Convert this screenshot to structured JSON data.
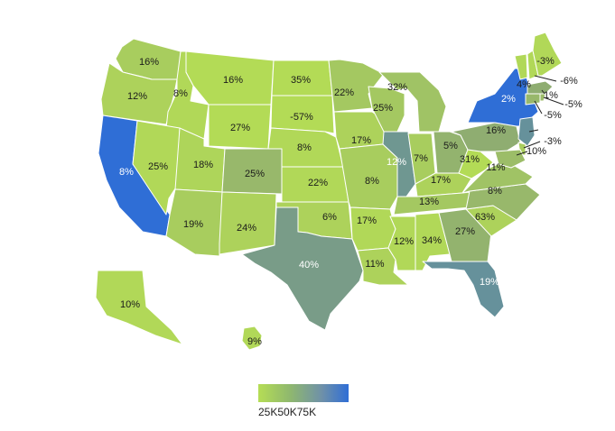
{
  "legend": {
    "ticks": [
      "25K",
      "50K",
      "75K"
    ]
  },
  "colors": {
    "low": "#b5dd55",
    "mid": "#8ba874",
    "high": "#2f6ed6",
    "border": "#ffffff"
  },
  "states": [
    {
      "id": "WA",
      "label": "16%",
      "level": 0.15
    },
    {
      "id": "OR",
      "label": "12%",
      "level": 0.1
    },
    {
      "id": "CA",
      "label": "8%",
      "level": 1.0
    },
    {
      "id": "ID",
      "label": "8%",
      "level": 0.05
    },
    {
      "id": "NV",
      "label": "25%",
      "level": 0.05
    },
    {
      "id": "MT",
      "label": "16%",
      "level": 0.02
    },
    {
      "id": "WY",
      "label": "27%",
      "level": 0.02
    },
    {
      "id": "UT",
      "label": "18%",
      "level": 0.08
    },
    {
      "id": "AZ",
      "label": "19%",
      "level": 0.15
    },
    {
      "id": "CO",
      "label": "25%",
      "level": 0.35
    },
    {
      "id": "NM",
      "label": "24%",
      "level": 0.1
    },
    {
      "id": "ND",
      "label": "35%",
      "level": 0.02
    },
    {
      "id": "SD",
      "label": "-57%",
      "level": 0.02
    },
    {
      "id": "NE",
      "label": "8%",
      "level": 0.05
    },
    {
      "id": "KS",
      "label": "22%",
      "level": 0.05
    },
    {
      "id": "OK",
      "label": "6%",
      "level": 0.1
    },
    {
      "id": "TX",
      "label": "40%",
      "level": 0.6
    },
    {
      "id": "MN",
      "label": "22%",
      "level": 0.2
    },
    {
      "id": "IA",
      "label": "17%",
      "level": 0.1
    },
    {
      "id": "MO",
      "label": "8%",
      "level": 0.15
    },
    {
      "id": "AR",
      "label": "17%",
      "level": 0.05
    },
    {
      "id": "LA",
      "label": "11%",
      "level": 0.1
    },
    {
      "id": "WI",
      "label": "25%",
      "level": 0.2
    },
    {
      "id": "MI",
      "label": "32%",
      "level": 0.25
    },
    {
      "id": "IL",
      "label": "12%",
      "level": 0.65
    },
    {
      "id": "IN",
      "label": "7%",
      "level": 0.15
    },
    {
      "id": "OH",
      "label": "5%",
      "level": 0.4
    },
    {
      "id": "KY",
      "label": "17%",
      "level": 0.1
    },
    {
      "id": "TN",
      "label": "13%",
      "level": 0.2
    },
    {
      "id": "MS",
      "label": "12%",
      "level": 0.05
    },
    {
      "id": "AL",
      "label": "34%",
      "level": 0.05
    },
    {
      "id": "GA",
      "label": "27%",
      "level": 0.4
    },
    {
      "id": "FL",
      "label": "19%",
      "level": 0.7
    },
    {
      "id": "SC",
      "label": "63%",
      "level": 0.1
    },
    {
      "id": "NC",
      "label": "8%",
      "level": 0.35
    },
    {
      "id": "VA",
      "label": "11%",
      "level": 0.25
    },
    {
      "id": "WV",
      "label": "31%",
      "level": 0.02
    },
    {
      "id": "PA",
      "label": "16%",
      "level": 0.45
    },
    {
      "id": "NY",
      "label": "2%",
      "level": 1.0
    },
    {
      "id": "VT",
      "label": "4%",
      "level": 0.05
    },
    {
      "id": "NH",
      "label": "-6%",
      "level": 0.05
    },
    {
      "id": "ME",
      "label": "-3%",
      "level": 0.05
    },
    {
      "id": "MA",
      "label": "1%",
      "level": 0.45
    },
    {
      "id": "RI",
      "label": "-5%",
      "level": 0.3
    },
    {
      "id": "CT",
      "label": "-5%",
      "level": 0.35
    },
    {
      "id": "NJ",
      "label": "3%",
      "level": 0.7
    },
    {
      "id": "DE",
      "label": "-3%",
      "level": 0.15
    },
    {
      "id": "MD",
      "label": "10%",
      "level": 0.3
    },
    {
      "id": "AK",
      "label": "10%",
      "level": 0.05
    },
    {
      "id": "HI",
      "label": "9%",
      "level": 0.05
    }
  ]
}
